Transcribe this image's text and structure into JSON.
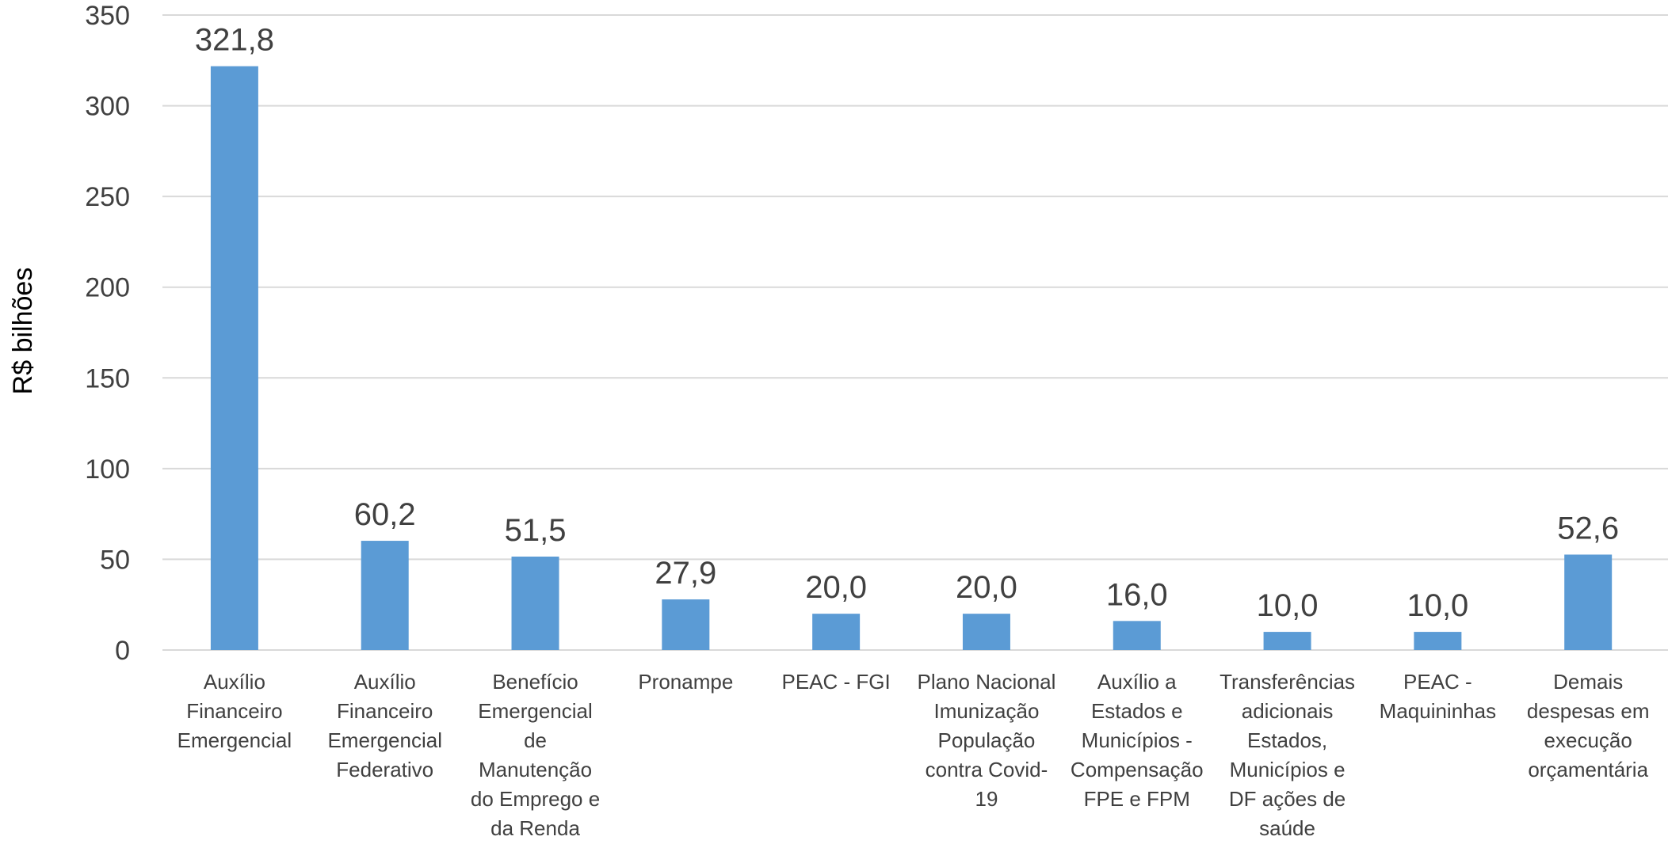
{
  "chart_data": {
    "type": "bar",
    "title": "",
    "xlabel": "",
    "ylabel": "R$ bilhões",
    "ylim": [
      0,
      350
    ],
    "yticks": [
      "0",
      "50",
      "100",
      "150",
      "200",
      "250",
      "300",
      "350"
    ],
    "grid": true,
    "legend": "none",
    "bar_color": "#5b9bd5",
    "categories": [
      [
        "Auxílio",
        "Financeiro",
        "Emergencial"
      ],
      [
        "Auxílio",
        "Financeiro",
        "Emergencial",
        "Federativo"
      ],
      [
        "Benefício",
        "Emergencial",
        "de",
        "Manutenção",
        "do Emprego e",
        "da Renda"
      ],
      [
        "Pronampe"
      ],
      [
        "PEAC - FGI"
      ],
      [
        "Plano Nacional",
        "Imunização",
        "População",
        "contra Covid-",
        "19"
      ],
      [
        "Auxílio a",
        "Estados e",
        "Municípios -",
        "Compensação",
        "FPE e FPM"
      ],
      [
        "Transferências",
        "adicionais",
        "Estados,",
        "Municípios e",
        "DF  ações de",
        "saúde"
      ],
      [
        "PEAC -",
        "Maquininhas"
      ],
      [
        "Demais",
        "despesas em",
        "execução",
        "orçamentária"
      ]
    ],
    "values": [
      321.8,
      60.2,
      51.5,
      27.9,
      20.0,
      20.0,
      16.0,
      10.0,
      10.0,
      52.6
    ],
    "data_labels": [
      "321,8",
      "60,2",
      "51,5",
      "27,9",
      "20,0",
      "20,0",
      "16,0",
      "10,0",
      "10,0",
      "52,6"
    ]
  }
}
